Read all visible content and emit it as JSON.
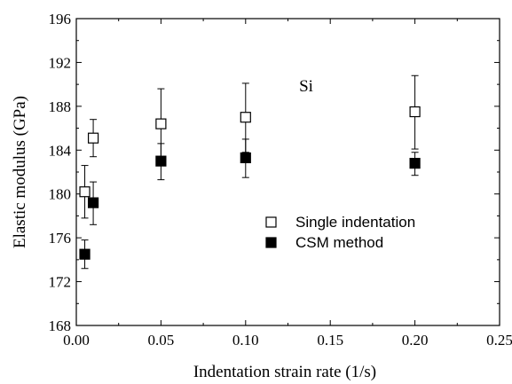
{
  "chart_data": {
    "type": "scatter",
    "xlabel": "Indentation strain rate (1/s)",
    "ylabel": "Elastic modulus (GPa)",
    "xlim": [
      0.0,
      0.25
    ],
    "ylim": [
      168,
      196
    ],
    "x_ticks": [
      "0.00",
      "0.05",
      "0.10",
      "0.15",
      "0.20",
      "0.25"
    ],
    "y_ticks": [
      "168",
      "172",
      "176",
      "180",
      "184",
      "188",
      "192",
      "196"
    ],
    "annotation": "Si",
    "legend_position": "center-right",
    "series": [
      {
        "name": "Single indentation",
        "marker": "open-square",
        "color": "#000000",
        "points": [
          {
            "x": 0.005,
            "y": 180.2,
            "yerr_low": 177.8,
            "yerr_high": 182.6
          },
          {
            "x": 0.01,
            "y": 185.1,
            "yerr_low": 183.4,
            "yerr_high": 186.8
          },
          {
            "x": 0.05,
            "y": 186.4,
            "yerr_low": 183.2,
            "yerr_high": 189.6
          },
          {
            "x": 0.1,
            "y": 187.0,
            "yerr_low": 183.8,
            "yerr_high": 190.1
          },
          {
            "x": 0.2,
            "y": 187.5,
            "yerr_low": 184.1,
            "yerr_high": 190.8
          }
        ]
      },
      {
        "name": "CSM method",
        "marker": "filled-square",
        "color": "#000000",
        "points": [
          {
            "x": 0.005,
            "y": 174.5,
            "yerr_low": 173.2,
            "yerr_high": 175.8
          },
          {
            "x": 0.01,
            "y": 179.2,
            "yerr_low": 177.2,
            "yerr_high": 181.1
          },
          {
            "x": 0.05,
            "y": 183.0,
            "yerr_low": 181.3,
            "yerr_high": 184.6
          },
          {
            "x": 0.1,
            "y": 183.3,
            "yerr_low": 181.5,
            "yerr_high": 185.0
          },
          {
            "x": 0.2,
            "y": 182.8,
            "yerr_low": 181.7,
            "yerr_high": 183.8
          }
        ]
      }
    ]
  }
}
